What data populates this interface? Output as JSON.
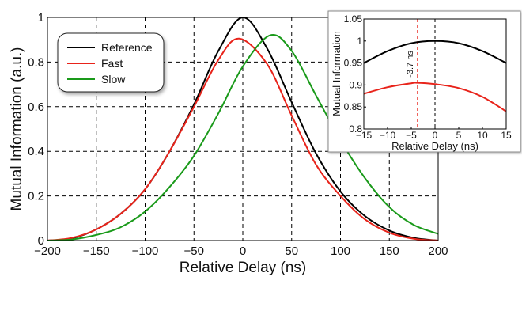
{
  "chart_data": [
    {
      "type": "line",
      "xlabel": "Relative Delay (ns)",
      "ylabel": "Mutual Information (a.u.)",
      "xlim": [
        -200,
        200
      ],
      "ylim": [
        0,
        1
      ],
      "xticks": [
        "-200",
        "-150",
        "-100",
        "-50",
        "0",
        "50",
        "100",
        "150",
        "200"
      ],
      "yticks": [
        "0",
        "0.2",
        "0.4",
        "0.6",
        "0.8",
        "1"
      ],
      "grid": true,
      "legend": {
        "placement": "top-left",
        "entries": [
          "Reference",
          "Fast",
          "Slow"
        ]
      },
      "series": [
        {
          "name": "Reference",
          "color": "#000000",
          "x": [
            -200,
            -175,
            -150,
            -125,
            -100,
            -75,
            -50,
            -25,
            0,
            25,
            50,
            75,
            100,
            125,
            150,
            175,
            200
          ],
          "y": [
            0,
            0.01,
            0.05,
            0.12,
            0.23,
            0.4,
            0.61,
            0.85,
            1.0,
            0.86,
            0.62,
            0.39,
            0.22,
            0.11,
            0.045,
            0.012,
            0
          ]
        },
        {
          "name": "Fast",
          "color": "#e8231a",
          "x": [
            -200,
            -175,
            -150,
            -125,
            -100,
            -75,
            -50,
            -25,
            -3.7,
            25,
            50,
            75,
            100,
            125,
            150,
            175,
            200
          ],
          "y": [
            0,
            0.012,
            0.05,
            0.12,
            0.23,
            0.4,
            0.6,
            0.81,
            0.905,
            0.79,
            0.56,
            0.34,
            0.2,
            0.095,
            0.035,
            0.008,
            0
          ]
        },
        {
          "name": "Slow",
          "color": "#1a9a1a",
          "x": [
            -200,
            -175,
            -150,
            -125,
            -100,
            -75,
            -50,
            -25,
            0,
            28,
            50,
            75,
            100,
            125,
            150,
            175,
            200
          ],
          "y": [
            0,
            0.005,
            0.025,
            0.06,
            0.13,
            0.24,
            0.38,
            0.57,
            0.78,
            0.92,
            0.85,
            0.65,
            0.45,
            0.28,
            0.15,
            0.07,
            0.03
          ]
        }
      ]
    },
    {
      "type": "line",
      "xlabel": "Relative Delay (ns)",
      "ylabel": "Mutual Information",
      "xlim": [
        -15,
        15
      ],
      "ylim": [
        0.8,
        1.05
      ],
      "xticks": [
        "-15",
        "-10",
        "-5",
        "0",
        "5",
        "10",
        "15"
      ],
      "yticks": [
        "0.8",
        "0.85",
        "0.9",
        "0.95",
        "1",
        "1.05"
      ],
      "grid": false,
      "annotation": "-3.7 ns",
      "markers": [
        {
          "x": -3.7,
          "color": "#e8231a"
        },
        {
          "x": 0,
          "color": "#000000"
        }
      ],
      "series": [
        {
          "color": "#000000",
          "x": [
            -15,
            -10,
            -5,
            0,
            5,
            10,
            15
          ],
          "y": [
            0.95,
            0.977,
            0.995,
            1.0,
            0.995,
            0.977,
            0.95
          ]
        },
        {
          "color": "#e8231a",
          "x": [
            -15,
            -10,
            -5,
            -3.7,
            0,
            5,
            10,
            15
          ],
          "y": [
            0.88,
            0.895,
            0.904,
            0.905,
            0.902,
            0.893,
            0.873,
            0.84
          ]
        }
      ]
    }
  ]
}
